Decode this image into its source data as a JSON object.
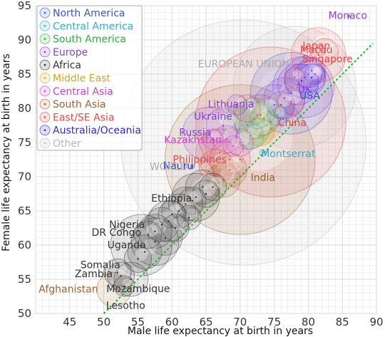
{
  "chart_data": {
    "type": "scatter",
    "xlabel": "Male life expectancy at birth in years",
    "ylabel": "Female life expectancy at birth in years",
    "xlim": [
      40,
      90
    ],
    "ylim": [
      50,
      95
    ],
    "x_ticks": [
      45,
      50,
      55,
      60,
      65,
      70,
      75,
      80,
      85,
      90
    ],
    "y_ticks": [
      50,
      55,
      60,
      65,
      70,
      75,
      80,
      85,
      90,
      95
    ],
    "grid": true,
    "legend_position": "top-left",
    "reference_line": "y = x (equal life expectancy)",
    "series": [
      {
        "name": "North America",
        "color": "#3b55d6"
      },
      {
        "name": "Central America",
        "color": "#33aacc"
      },
      {
        "name": "South America",
        "color": "#33aa44"
      },
      {
        "name": "Europe",
        "color": "#8a3fd6"
      },
      {
        "name": "Africa",
        "color": "#333333"
      },
      {
        "name": "Middle East",
        "color": "#d9a520"
      },
      {
        "name": "Central Asia",
        "color": "#d040c8"
      },
      {
        "name": "South Asia",
        "color": "#a0622d"
      },
      {
        "name": "East/SE Asia",
        "color": "#e24848"
      },
      {
        "name": "Australia/Oceania",
        "color": "#2a2ad6"
      },
      {
        "name": "Other",
        "color": "#bbbbbb"
      }
    ],
    "points": [
      {
        "label": "Monaco",
        "x": 86,
        "y": 93.5,
        "group": "Europe",
        "r": 0.3,
        "label_dx": -2,
        "label_dy": 4
      },
      {
        "label": "Japan",
        "x": 81.5,
        "y": 87.8,
        "group": "East/SE Asia",
        "r": 4,
        "label_dx": -3,
        "label_dy": -8
      },
      {
        "label": "Macau",
        "x": 81.8,
        "y": 88.5,
        "group": "East/SE Asia",
        "r": 0.8,
        "label_dx": -6,
        "label_dy": 4
      },
      {
        "label": "Singapore",
        "x": 82.4,
        "y": 88.2,
        "group": "East/SE Asia",
        "r": 2,
        "label_dx": 4,
        "label_dy": 14
      },
      {
        "label": "UK",
        "x": 79.3,
        "y": 83.1,
        "group": "Europe",
        "r": 4.5,
        "label_dx": 2,
        "label_dy": 8
      },
      {
        "label": "USA",
        "x": 77.5,
        "y": 82.2,
        "group": "North America",
        "r": 6,
        "label_dx": 26,
        "label_dy": 8
      },
      {
        "label": "China",
        "x": 74.5,
        "y": 78.0,
        "group": "East/SE Asia",
        "r": 11,
        "label_dx": 30,
        "label_dy": 6
      },
      {
        "label": "Montserrat",
        "x": 73.3,
        "y": 73.5,
        "group": "Central America",
        "r": 0.5,
        "label_dx": 36,
        "label_dy": 6
      },
      {
        "label": "India",
        "x": 70.0,
        "y": 72.5,
        "group": "South Asia",
        "r": 11,
        "label_dx": 32,
        "label_dy": 30
      },
      {
        "label": "Lithuania",
        "x": 69.5,
        "y": 80.5,
        "group": "Europe",
        "r": 1.5,
        "label_dx": -8,
        "label_dy": 4
      },
      {
        "label": "Ukraine",
        "x": 67.5,
        "y": 77.5,
        "group": "Europe",
        "r": 2.5,
        "label_dx": -14,
        "label_dy": -8
      },
      {
        "label": "Russia",
        "x": 65.5,
        "y": 76.2,
        "group": "Europe",
        "r": 4,
        "label_dx": -20,
        "label_dy": 2
      },
      {
        "label": "Kazakhstan",
        "x": 66.0,
        "y": 75.5,
        "group": "Central Asia",
        "r": 1.5,
        "label_dx": -28,
        "label_dy": 6
      },
      {
        "label": "Philippines",
        "x": 67.0,
        "y": 73.5,
        "group": "East/SE Asia",
        "r": 3.5,
        "label_dx": -28,
        "label_dy": 14
      },
      {
        "label": "Nauru",
        "x": 63.0,
        "y": 71.5,
        "group": "Australia/Oceania",
        "r": 0.3,
        "label_dx": -20,
        "label_dy": 4
      },
      {
        "label": "Ethiopia",
        "x": 63.5,
        "y": 67.0,
        "group": "Africa",
        "r": 3.5,
        "label_dx": -34,
        "label_dy": 6
      },
      {
        "label": "Nigeria",
        "x": 55.5,
        "y": 60.0,
        "group": "Africa",
        "r": 4.5,
        "label_dx": -20,
        "label_dy": -24
      },
      {
        "label": "DR Congo",
        "x": 57.5,
        "y": 60.5,
        "group": "Africa",
        "r": 3.5,
        "label_dx": -54,
        "label_dy": -8
      },
      {
        "label": "Uganda",
        "x": 59.0,
        "y": 61.0,
        "group": "Africa",
        "r": 2.5,
        "label_dx": -54,
        "label_dy": 14
      },
      {
        "label": "Somalia",
        "x": 52.0,
        "y": 56.0,
        "group": "Africa",
        "r": 2,
        "label_dx": -24,
        "label_dy": -6
      },
      {
        "label": "Zambia",
        "x": 52.5,
        "y": 55.5,
        "group": "Africa",
        "r": 2,
        "label_dx": -38,
        "label_dy": 2
      },
      {
        "label": "Afghanistan",
        "x": 51.5,
        "y": 53.5,
        "group": "South Asia",
        "r": 2.5,
        "label_dx": -64,
        "label_dy": 4
      },
      {
        "label": "Mozambique",
        "x": 54.0,
        "y": 55.0,
        "group": "Africa",
        "r": 2.5,
        "label_dx": 10,
        "label_dy": 18
      },
      {
        "label": "Lesotho",
        "x": 53.0,
        "y": 54.0,
        "group": "Africa",
        "r": 1.5,
        "label_dx": 2,
        "label_dy": 32
      },
      {
        "label": "",
        "x": 70.5,
        "y": 75.0,
        "group": "Other",
        "r": 18
      },
      {
        "label": "",
        "x": 78.0,
        "y": 83.0,
        "group": "Other",
        "r": 9
      },
      {
        "label": "",
        "x": 73.0,
        "y": 79.0,
        "group": "Europe",
        "r": 3
      },
      {
        "label": "",
        "x": 75.0,
        "y": 80.5,
        "group": "Europe",
        "r": 3
      },
      {
        "label": "",
        "x": 76.5,
        "y": 81.5,
        "group": "Europe",
        "r": 3
      },
      {
        "label": "",
        "x": 78.5,
        "y": 83.5,
        "group": "Europe",
        "r": 3
      },
      {
        "label": "",
        "x": 79.5,
        "y": 84.5,
        "group": "Europe",
        "r": 3
      },
      {
        "label": "",
        "x": 80.0,
        "y": 85.0,
        "group": "Europe",
        "r": 2
      },
      {
        "label": "",
        "x": 80.5,
        "y": 85.5,
        "group": "Europe",
        "r": 2
      },
      {
        "label": "",
        "x": 81.0,
        "y": 85.0,
        "group": "Europe",
        "r": 1.5
      },
      {
        "label": "",
        "x": 72.0,
        "y": 78.5,
        "group": "South America",
        "r": 3
      },
      {
        "label": "",
        "x": 71.0,
        "y": 77.5,
        "group": "South America",
        "r": 3.5
      },
      {
        "label": "",
        "x": 73.5,
        "y": 78.5,
        "group": "South America",
        "r": 2
      },
      {
        "label": "",
        "x": 72.5,
        "y": 77.0,
        "group": "Middle East",
        "r": 2.5
      },
      {
        "label": "",
        "x": 74.0,
        "y": 77.5,
        "group": "Middle East",
        "r": 2
      },
      {
        "label": "",
        "x": 73.0,
        "y": 76.5,
        "group": "Middle East",
        "r": 2
      },
      {
        "label": "",
        "x": 71.5,
        "y": 76.0,
        "group": "Central America",
        "r": 2
      },
      {
        "label": "",
        "x": 72.5,
        "y": 79.0,
        "group": "Central America",
        "r": 2
      },
      {
        "label": "",
        "x": 70.0,
        "y": 75.0,
        "group": "Central Asia",
        "r": 2
      },
      {
        "label": "",
        "x": 69.0,
        "y": 74.5,
        "group": "Central Asia",
        "r": 1.5
      },
      {
        "label": "",
        "x": 68.0,
        "y": 75.5,
        "group": "Central Asia",
        "r": 2
      },
      {
        "label": "",
        "x": 66.5,
        "y": 71.5,
        "group": "East/SE Asia",
        "r": 2.5
      },
      {
        "label": "",
        "x": 68.5,
        "y": 72.5,
        "group": "East/SE Asia",
        "r": 3
      },
      {
        "label": "",
        "x": 71.0,
        "y": 80.0,
        "group": "East/SE Asia",
        "r": 2
      },
      {
        "label": "",
        "x": 67.5,
        "y": 69.5,
        "group": "South Asia",
        "r": 2.5
      },
      {
        "label": "",
        "x": 68.5,
        "y": 71.0,
        "group": "South Asia",
        "r": 2.5
      },
      {
        "label": "",
        "x": 66.0,
        "y": 68.5,
        "group": "Africa",
        "r": 2
      },
      {
        "label": "",
        "x": 65.0,
        "y": 67.5,
        "group": "Africa",
        "r": 2
      },
      {
        "label": "",
        "x": 64.5,
        "y": 68.5,
        "group": "Africa",
        "r": 2.5
      },
      {
        "label": "",
        "x": 63.0,
        "y": 66.5,
        "group": "Africa",
        "r": 2
      },
      {
        "label": "",
        "x": 62.0,
        "y": 66.0,
        "group": "Africa",
        "r": 2.5
      },
      {
        "label": "",
        "x": 61.0,
        "y": 65.0,
        "group": "Africa",
        "r": 2.5
      },
      {
        "label": "",
        "x": 60.0,
        "y": 64.5,
        "group": "Africa",
        "r": 2
      },
      {
        "label": "",
        "x": 59.5,
        "y": 63.5,
        "group": "Africa",
        "r": 3
      },
      {
        "label": "",
        "x": 58.5,
        "y": 63.0,
        "group": "Africa",
        "r": 2.5
      },
      {
        "label": "",
        "x": 57.5,
        "y": 62.0,
        "group": "Africa",
        "r": 2.5
      },
      {
        "label": "",
        "x": 56.5,
        "y": 61.5,
        "group": "Africa",
        "r": 2
      },
      {
        "label": "",
        "x": 60.5,
        "y": 62.5,
        "group": "Africa",
        "r": 2
      },
      {
        "label": "",
        "x": 62.5,
        "y": 64.0,
        "group": "Africa",
        "r": 1.8
      },
      {
        "label": "",
        "x": 56.0,
        "y": 59.0,
        "group": "Africa",
        "r": 2.5
      },
      {
        "label": "",
        "x": 55.0,
        "y": 58.0,
        "group": "Africa",
        "r": 2
      },
      {
        "label": "",
        "x": 76.0,
        "y": 80.5,
        "group": "North America",
        "r": 2
      },
      {
        "label": "",
        "x": 79.0,
        "y": 84.0,
        "group": "Australia/Oceania",
        "r": 2.5
      },
      {
        "label": "",
        "x": 80.5,
        "y": 84.5,
        "group": "Australia/Oceania",
        "r": 2
      },
      {
        "label": "",
        "x": 77.5,
        "y": 81.0,
        "group": "East/SE Asia",
        "r": 2
      },
      {
        "label": "",
        "x": 78.0,
        "y": 84.5,
        "group": "East/SE Asia",
        "r": 1.5
      },
      {
        "label": "",
        "x": 74.0,
        "y": 80.0,
        "group": "Middle East",
        "r": 1.8
      },
      {
        "label": "",
        "x": 75.5,
        "y": 79.0,
        "group": "Central America",
        "r": 1.5
      }
    ],
    "annotations": [
      {
        "text": "EUROPEAN UNION",
        "x": 70.5,
        "y": 86.0,
        "color": "#aaaaaa"
      },
      {
        "text": "WORLD",
        "x": 59.5,
        "y": 71.0,
        "color": "#aaaaaa"
      }
    ]
  },
  "legend": [
    {
      "label": "North America",
      "color": "#3b55d6"
    },
    {
      "label": "Central America",
      "color": "#33aacc"
    },
    {
      "label": "South America",
      "color": "#33aa44"
    },
    {
      "label": "Europe",
      "color": "#8a3fd6"
    },
    {
      "label": "Africa",
      "color": "#333333"
    },
    {
      "label": "Middle East",
      "color": "#d9a520"
    },
    {
      "label": "Central Asia",
      "color": "#d040c8"
    },
    {
      "label": "South Asia",
      "color": "#a0622d"
    },
    {
      "label": "East/SE Asia",
      "color": "#e24848"
    },
    {
      "label": "Australia/Oceania",
      "color": "#2a2ad6"
    },
    {
      "label": "Other",
      "color": "#bbbbbb"
    }
  ]
}
